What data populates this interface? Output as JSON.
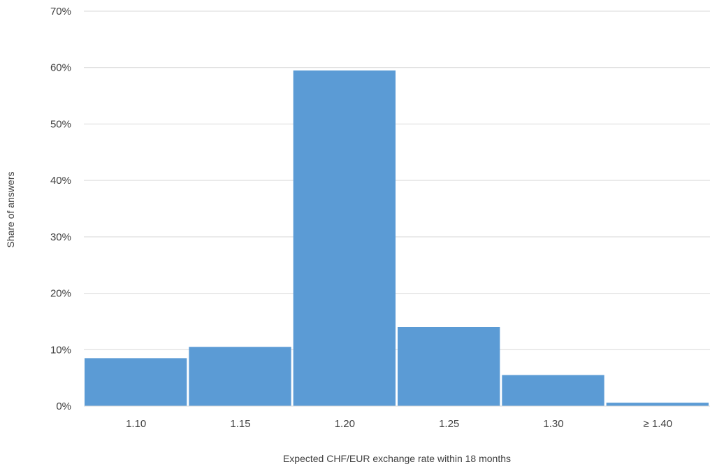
{
  "chart_data": {
    "type": "bar",
    "categories": [
      "1.10",
      "1.15",
      "1.20",
      "1.25",
      "1.30",
      "≥ 1.40"
    ],
    "values": [
      8.5,
      10.5,
      59.5,
      14.0,
      5.5,
      0.6
    ],
    "title": "",
    "xlabel": "Expected CHF/EUR  exchange rate within 18 months",
    "ylabel": "Share of answers",
    "ylim": [
      0,
      70
    ],
    "yticks": [
      "0%",
      "10%",
      "20%",
      "30%",
      "40%",
      "50%",
      "60%",
      "70%"
    ],
    "grid": true,
    "bar_color": "#5B9BD5",
    "grid_color": "#D9D9D9"
  }
}
